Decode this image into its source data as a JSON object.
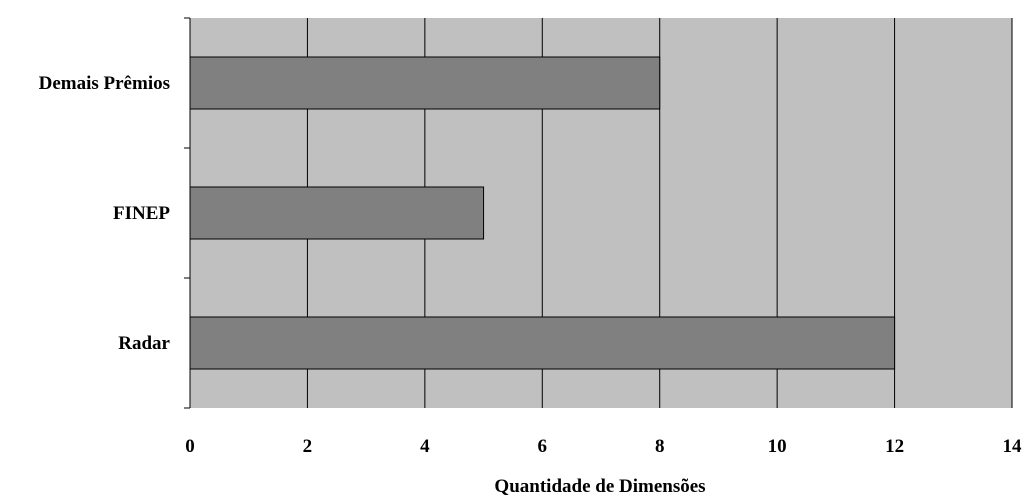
{
  "chart_data": {
    "type": "bar",
    "orientation": "horizontal",
    "categories": [
      "Demais Prêmios",
      "FINEP",
      "Radar"
    ],
    "values": [
      8,
      5,
      12
    ],
    "title": "",
    "xlabel": "Quantidade de Dimensões",
    "ylabel": "",
    "xlim": [
      0,
      14
    ],
    "xticks": [
      "0",
      "2",
      "4",
      "6",
      "8",
      "10",
      "12",
      "14"
    ],
    "grid": "vertical",
    "legend": "none",
    "colors": {
      "plot_background": "#c0c0c0",
      "bar_fill": "#808080",
      "bar_edge": "#000000",
      "grid": "#000000"
    }
  }
}
